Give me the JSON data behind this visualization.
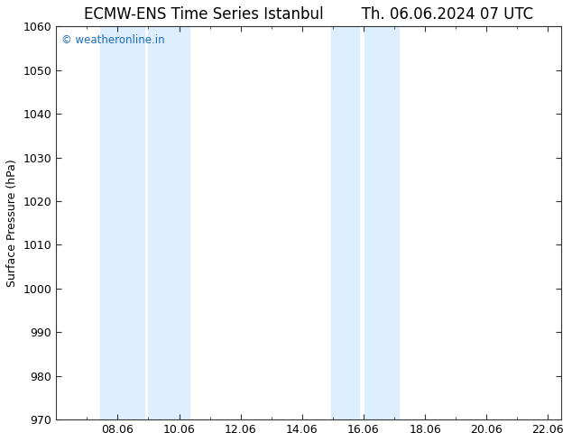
{
  "title_left": "ECMW-ENS Time Series Istanbul",
  "title_right": "Th. 06.06.2024 07 UTC",
  "ylabel": "Surface Pressure (hPa)",
  "ylim": [
    970,
    1060
  ],
  "yticks": [
    970,
    980,
    990,
    1000,
    1010,
    1020,
    1030,
    1040,
    1050,
    1060
  ],
  "xlim_start": 6.06,
  "xlim_end": 22.5,
  "xtick_positions": [
    8.06,
    10.06,
    12.06,
    14.06,
    16.06,
    18.06,
    20.06,
    22.06
  ],
  "xtick_labels": [
    "08.06",
    "10.06",
    "12.06",
    "14.06",
    "16.06",
    "18.06",
    "20.06",
    "22.06"
  ],
  "shaded_bands": [
    {
      "x_start": 7.5,
      "x_end": 8.94
    },
    {
      "x_start": 9.06,
      "x_end": 10.4
    },
    {
      "x_start": 15.0,
      "x_end": 15.9
    },
    {
      "x_start": 16.1,
      "x_end": 17.2
    }
  ],
  "band_color": "#ddeeff",
  "background_color": "#ffffff",
  "plot_bg_color": "#ffffff",
  "watermark_text": "© weatheronline.in",
  "watermark_color": "#1a6bbf",
  "title_color": "#000000",
  "title_fontsize": 12,
  "axis_label_fontsize": 9,
  "tick_fontsize": 9,
  "spine_color": "#333333"
}
